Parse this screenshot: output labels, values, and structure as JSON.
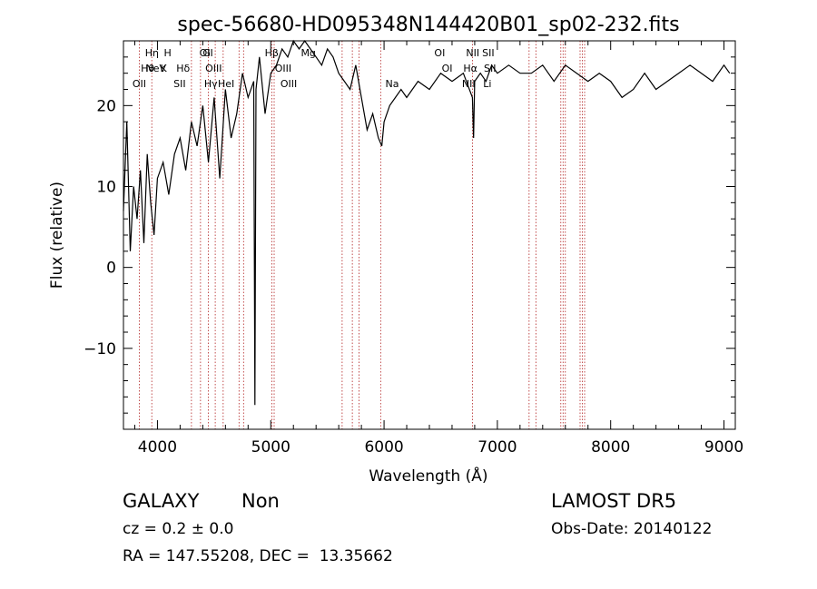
{
  "chart_data": {
    "type": "line",
    "title": "spec-56680-HD095348N144420B01_sp02-232.fits",
    "xlabel": "Wavelength (Å)",
    "ylabel": "Flux (relative)",
    "xlim": [
      3700,
      9100
    ],
    "ylim": [
      -20,
      28
    ],
    "x_ticks": [
      4000,
      5000,
      6000,
      7000,
      8000,
      9000
    ],
    "y_ticks": [
      -10,
      0,
      10,
      20
    ],
    "grid": false,
    "series": [
      {
        "x": [
          3700,
          3730,
          3760,
          3790,
          3820,
          3850,
          3880,
          3910,
          3940,
          3970,
          4000,
          4050,
          4100,
          4150,
          4200,
          4250,
          4300,
          4350,
          4400,
          4450,
          4500,
          4550,
          4600,
          4650,
          4700,
          4750,
          4800,
          4850,
          4860,
          4870,
          4900,
          4950,
          5000,
          5050,
          5100,
          5150,
          5200,
          5250,
          5300,
          5350,
          5400,
          5450,
          5500,
          5550,
          5600,
          5650,
          5700,
          5750,
          5800,
          5850,
          5900,
          5950,
          5980,
          6000,
          6050,
          6100,
          6150,
          6200,
          6300,
          6400,
          6500,
          6600,
          6700,
          6780,
          6790,
          6800,
          6850,
          6900,
          6950,
          7000,
          7100,
          7200,
          7300,
          7400,
          7500,
          7600,
          7700,
          7800,
          7900,
          8000,
          8100,
          8200,
          8300,
          8400,
          8500,
          8600,
          8700,
          8800,
          8900,
          9000,
          9050
        ],
        "y": [
          7,
          18,
          2,
          10,
          6,
          12,
          3,
          14,
          8,
          4,
          11,
          13,
          9,
          14,
          16,
          12,
          18,
          15,
          20,
          13,
          21,
          11,
          22,
          16,
          19,
          24,
          21,
          23,
          -17,
          22,
          26,
          19,
          24,
          25,
          27,
          26,
          28,
          27,
          28,
          27,
          26,
          25,
          27,
          26,
          24,
          23,
          22,
          25,
          21,
          17,
          19,
          16,
          15,
          18,
          20,
          21,
          22,
          21,
          23,
          22,
          24,
          23,
          24,
          21,
          16,
          23,
          24,
          23,
          25,
          24,
          25,
          24,
          24,
          25,
          23,
          25,
          24,
          23,
          24,
          23,
          21,
          22,
          24,
          22,
          23,
          24,
          25,
          24,
          23,
          25,
          24
        ],
        "color": "#000000"
      }
    ],
    "line_markers": [
      {
        "label": "NeV",
        "wave": 3426,
        "row": 2
      },
      {
        "label": "NeV",
        "wave": 3869,
        "row": 1
      },
      {
        "label": "OII",
        "wave": 3727,
        "row": 2
      },
      {
        "label": "OII",
        "wave": 4300,
        "row": 0
      },
      {
        "label": "Hη",
        "wave": 3835,
        "row": 0
      },
      {
        "label": "Hθ",
        "wave": 3798,
        "row": 1
      },
      {
        "label": "HeI",
        "wave": 4471,
        "row": 2
      },
      {
        "label": "K",
        "wave": 3934,
        "row": 1
      },
      {
        "label": "H",
        "wave": 3969,
        "row": 0
      },
      {
        "label": "Hδ",
        "wave": 4102,
        "row": 1
      },
      {
        "label": "SII",
        "wave": 4072,
        "row": 2
      },
      {
        "label": "G",
        "wave": 4304,
        "row": 0
      },
      {
        "label": "OIII",
        "wave": 4363,
        "row": 1
      },
      {
        "label": "Hγ",
        "wave": 4340,
        "row": 2
      },
      {
        "label": "Hβ",
        "wave": 4861,
        "row": 0
      },
      {
        "label": "OIII",
        "wave": 4959,
        "row": 1
      },
      {
        "label": "OIII",
        "wave": 5007,
        "row": 2
      },
      {
        "label": "Mg",
        "wave": 5175,
        "row": 0
      },
      {
        "label": "Na",
        "wave": 5893,
        "row": 2
      },
      {
        "label": "OI",
        "wave": 6300,
        "row": 0
      },
      {
        "label": "OI",
        "wave": 6364,
        "row": 1
      },
      {
        "label": "NII",
        "wave": 6583,
        "row": 0
      },
      {
        "label": "Hα",
        "wave": 6563,
        "row": 1
      },
      {
        "label": "NII",
        "wave": 6548,
        "row": 2
      },
      {
        "label": "SII",
        "wave": 6716,
        "row": 0
      },
      {
        "label": "SII",
        "wave": 6731,
        "row": 1
      },
      {
        "label": "Li",
        "wave": 6708,
        "row": 2
      }
    ],
    "marker_lines_obs": [
      3840,
      3950,
      4300,
      4380,
      4450,
      4510,
      4580,
      4720,
      4760,
      5010,
      5030,
      5630,
      5720,
      5780,
      5970,
      6780,
      7280,
      7340,
      7560,
      7580,
      7600,
      7730,
      7750,
      7770
    ]
  },
  "footer": {
    "class_label": "GALAXY",
    "subclass_label": "Non",
    "cz_text": "cz = 0.2 ± 0.0",
    "radec_text": "RA = 147.55208, DEC =  13.35662",
    "survey_label": "LAMOST DR5",
    "obs_date_text": "Obs-Date: 20140122"
  }
}
